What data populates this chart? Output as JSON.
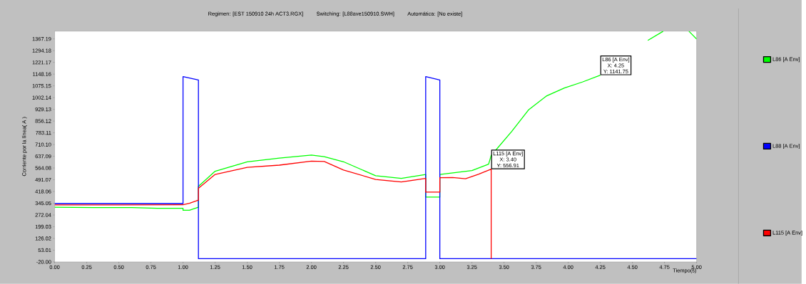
{
  "chart_data": {
    "type": "line",
    "title": "Regimen: [EST 150910 24h ACT3.RGX]",
    "xlabel": "Tiempo(s)",
    "ylabel": "Corriente por la línea( A )",
    "annotations": [
      "Switching: [L88ave150910.SWH]",
      "Automática: [No existe]",
      {
        "text": "L86  [A Env]",
        "x": 4.25,
        "y": 1141.75
      },
      "X: 4.25",
      "Y: 1141.75",
      {
        "text": "L115  [A Env]",
        "x": 3.4,
        "y": 556.91
      },
      "X: 3.40",
      "Y: 556.91"
    ],
    "xlim": [
      0,
      5
    ],
    "ylim": [
      -20,
      1415.6
    ],
    "xticks": [
      {
        "value": 0,
        "label": "0.00"
      },
      {
        "value": 0.25,
        "label": "0.25"
      },
      {
        "value": 0.5,
        "label": "0.50"
      },
      {
        "value": 0.75,
        "label": "0.75"
      },
      {
        "value": 1,
        "label": "1.00"
      },
      {
        "value": 1.25,
        "label": "1.25"
      },
      {
        "value": 1.5,
        "label": "1.50"
      },
      {
        "value": 1.75,
        "label": "1.75"
      },
      {
        "value": 2,
        "label": "2.00"
      },
      {
        "value": 2.25,
        "label": "2.25"
      },
      {
        "value": 2.5,
        "label": "2.50"
      },
      {
        "value": 2.75,
        "label": "2.75"
      },
      {
        "value": 3,
        "label": "3.00"
      },
      {
        "value": 3.25,
        "label": "3.25"
      },
      {
        "value": 3.5,
        "label": "3.50"
      },
      {
        "value": 3.75,
        "label": "3.75"
      },
      {
        "value": 4,
        "label": "4.00"
      },
      {
        "value": 4.25,
        "label": "4.25"
      },
      {
        "value": 4.5,
        "label": "4.50"
      },
      {
        "value": 4.75,
        "label": "4.75"
      },
      {
        "value": 5,
        "label": "5.00"
      }
    ],
    "yticks": [
      {
        "value": -20,
        "label": "-20.00"
      },
      {
        "value": 53.01,
        "label": "53.01"
      },
      {
        "value": 126.02,
        "label": "126.02"
      },
      {
        "value": 199.03,
        "label": "199.03"
      },
      {
        "value": 272.04,
        "label": "272.04"
      },
      {
        "value": 345.05,
        "label": "345.05"
      },
      {
        "value": 418.06,
        "label": "418.06"
      },
      {
        "value": 491.07,
        "label": "491.07"
      },
      {
        "value": 564.08,
        "label": "564.08"
      },
      {
        "value": 637.09,
        "label": "637.09"
      },
      {
        "value": 710.1,
        "label": "710.10"
      },
      {
        "value": 783.11,
        "label": "783.11"
      },
      {
        "value": 856.12,
        "label": "856.12"
      },
      {
        "value": 929.13,
        "label": "929.13"
      },
      {
        "value": 1002.14,
        "label": "1002.14"
      },
      {
        "value": 1075.15,
        "label": "1075.15"
      },
      {
        "value": 1148.16,
        "label": "1148.16"
      },
      {
        "value": 1221.17,
        "label": "1221.17"
      },
      {
        "value": 1294.18,
        "label": "1294.18"
      },
      {
        "value": 1367.19,
        "label": "1367.19"
      }
    ],
    "grid": false,
    "legend": "right",
    "marker": "none",
    "line_style": "solid",
    "series": [
      {
        "name": "L86  [A Env]",
        "color": "#00ff00",
        "x": [
          0,
          0.3,
          0.6,
          0.8,
          1.0,
          1.0,
          1.05,
          1.12,
          1.12,
          1.25,
          1.5,
          1.75,
          2.0,
          2.1,
          2.25,
          2.5,
          2.7,
          2.89,
          2.89,
          3.0,
          3.0,
          3.25,
          3.38,
          3.4,
          3.56,
          3.69,
          3.83,
          3.97,
          4.11,
          4.25,
          4.41,
          4.62,
          4.74,
          4.8,
          4.94,
          5.0
        ],
        "values": [
          320,
          318,
          318,
          314,
          314,
          301,
          301,
          320,
          450,
          544,
          603,
          626,
          645,
          635,
          603,
          516,
          500,
          524,
          383,
          383,
          524,
          548,
          588,
          642,
          792,
          925,
          1012,
          1062,
          1099,
          1142,
          null,
          1358,
          1415,
          null,
          1415,
          1367
        ]
      },
      {
        "name": "L88  [A Env]",
        "color": "#0000ff",
        "x": [
          0,
          1.0,
          1.0,
          1.12,
          1.12,
          2.89,
          2.89,
          3.0,
          3.0,
          5.0
        ],
        "values": [
          343,
          343,
          1133,
          1112,
          0,
          0,
          1133,
          1112,
          0,
          0
        ]
      },
      {
        "name": "L115  [A Env]",
        "color": "#ff0000",
        "x": [
          0,
          0.5,
          1.0,
          1.05,
          1.1,
          1.12,
          1.12,
          1.25,
          1.5,
          1.75,
          2.0,
          2.1,
          2.25,
          2.5,
          2.7,
          2.89,
          2.89,
          3.0,
          3.0,
          3.1,
          3.2,
          3.3,
          3.4,
          3.4
        ],
        "values": [
          335,
          335,
          336,
          345,
          359,
          365,
          438,
          524,
          568,
          582,
          607,
          605,
          552,
          493,
          477,
          500,
          414,
          414,
          504,
          505,
          497,
          525,
          557,
          0
        ]
      }
    ]
  }
}
